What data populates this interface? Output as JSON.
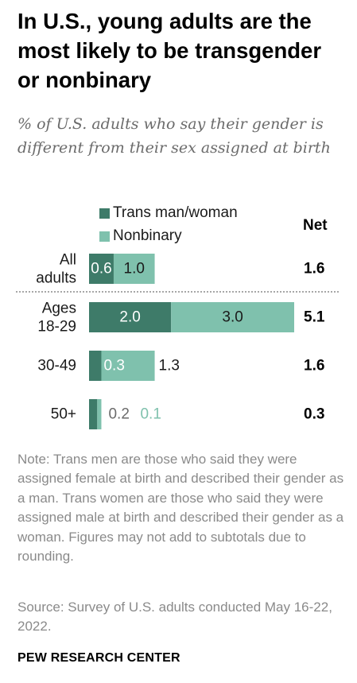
{
  "title": "In U.S., young adults are the most likely to be transgender or nonbinary",
  "subtitle": "% of U.S. adults who say their gender is different from their sex assigned at birth",
  "net_header": "Net",
  "note": "Note: Trans men are those who said they were assigned female at birth and described their gender as a man. Trans women are those who said they were assigned male at birth and described their gender as a woman. Figures may not add to subtotals due to rounding.",
  "source": "Source: Survey of U.S. adults conducted May 16-22, 2022.",
  "brand": "PEW RESEARCH CENTER",
  "colors": {
    "trans": "#3e7b69",
    "nonbinary": "#7fc1ad",
    "separator": "#8a8a8a"
  },
  "chart_data": {
    "type": "bar",
    "orientation": "horizontal",
    "stacked": true,
    "categories": [
      "All adults",
      "Ages 18-29",
      "30-49",
      "50+"
    ],
    "series": [
      {
        "name": "Trans man/woman",
        "values": [
          0.6,
          2.0,
          0.3,
          0.2
        ]
      },
      {
        "name": "Nonbinary",
        "values": [
          1.0,
          3.0,
          1.3,
          0.1
        ]
      }
    ],
    "net": [
      1.6,
      5.1,
      1.6,
      0.3
    ],
    "legend_position": "top",
    "grid": false,
    "xlim": [
      0,
      5.1
    ]
  }
}
